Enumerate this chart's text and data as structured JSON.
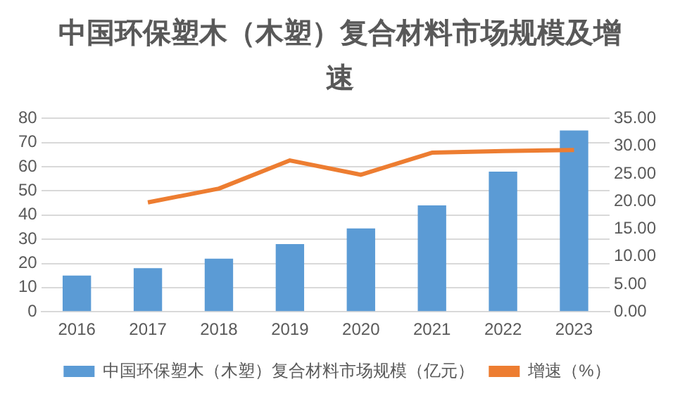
{
  "chart_data": {
    "type": "bar",
    "title": "中国环保塑木（木塑）复合材料市场规模及增速",
    "categories": [
      "2016",
      "2017",
      "2018",
      "2019",
      "2020",
      "2021",
      "2022",
      "2023"
    ],
    "series": [
      {
        "name": "中国环保塑木（木塑）复合材料市场规模（亿元）",
        "color": "#5b9bd5",
        "values": [
          15,
          18,
          22,
          28,
          34.5,
          44,
          58,
          75
        ]
      },
      {
        "name": "增速（%）",
        "type": "line",
        "axis": "y2",
        "color": "#ed7d31",
        "values": [
          null,
          19.8,
          22.3,
          27.4,
          24.8,
          28.8,
          29.1,
          29.3
        ]
      }
    ],
    "ylim": [
      0,
      80
    ],
    "yticks": [
      0,
      10,
      20,
      30,
      40,
      50,
      60,
      70,
      80
    ],
    "y2lim": [
      0,
      35
    ],
    "y2ticks": [
      {
        "value": 0,
        "label": "0.00"
      },
      {
        "value": 5,
        "label": "5.00"
      },
      {
        "value": 10,
        "label": "10.00"
      },
      {
        "value": 15,
        "label": "15.00"
      },
      {
        "value": 20,
        "label": "20.00"
      },
      {
        "value": 25,
        "label": "25.00"
      },
      {
        "value": 30,
        "label": "30.00"
      },
      {
        "value": 35,
        "label": "35.00"
      }
    ],
    "grid": "y",
    "legend": "bottom",
    "marker": "none"
  }
}
